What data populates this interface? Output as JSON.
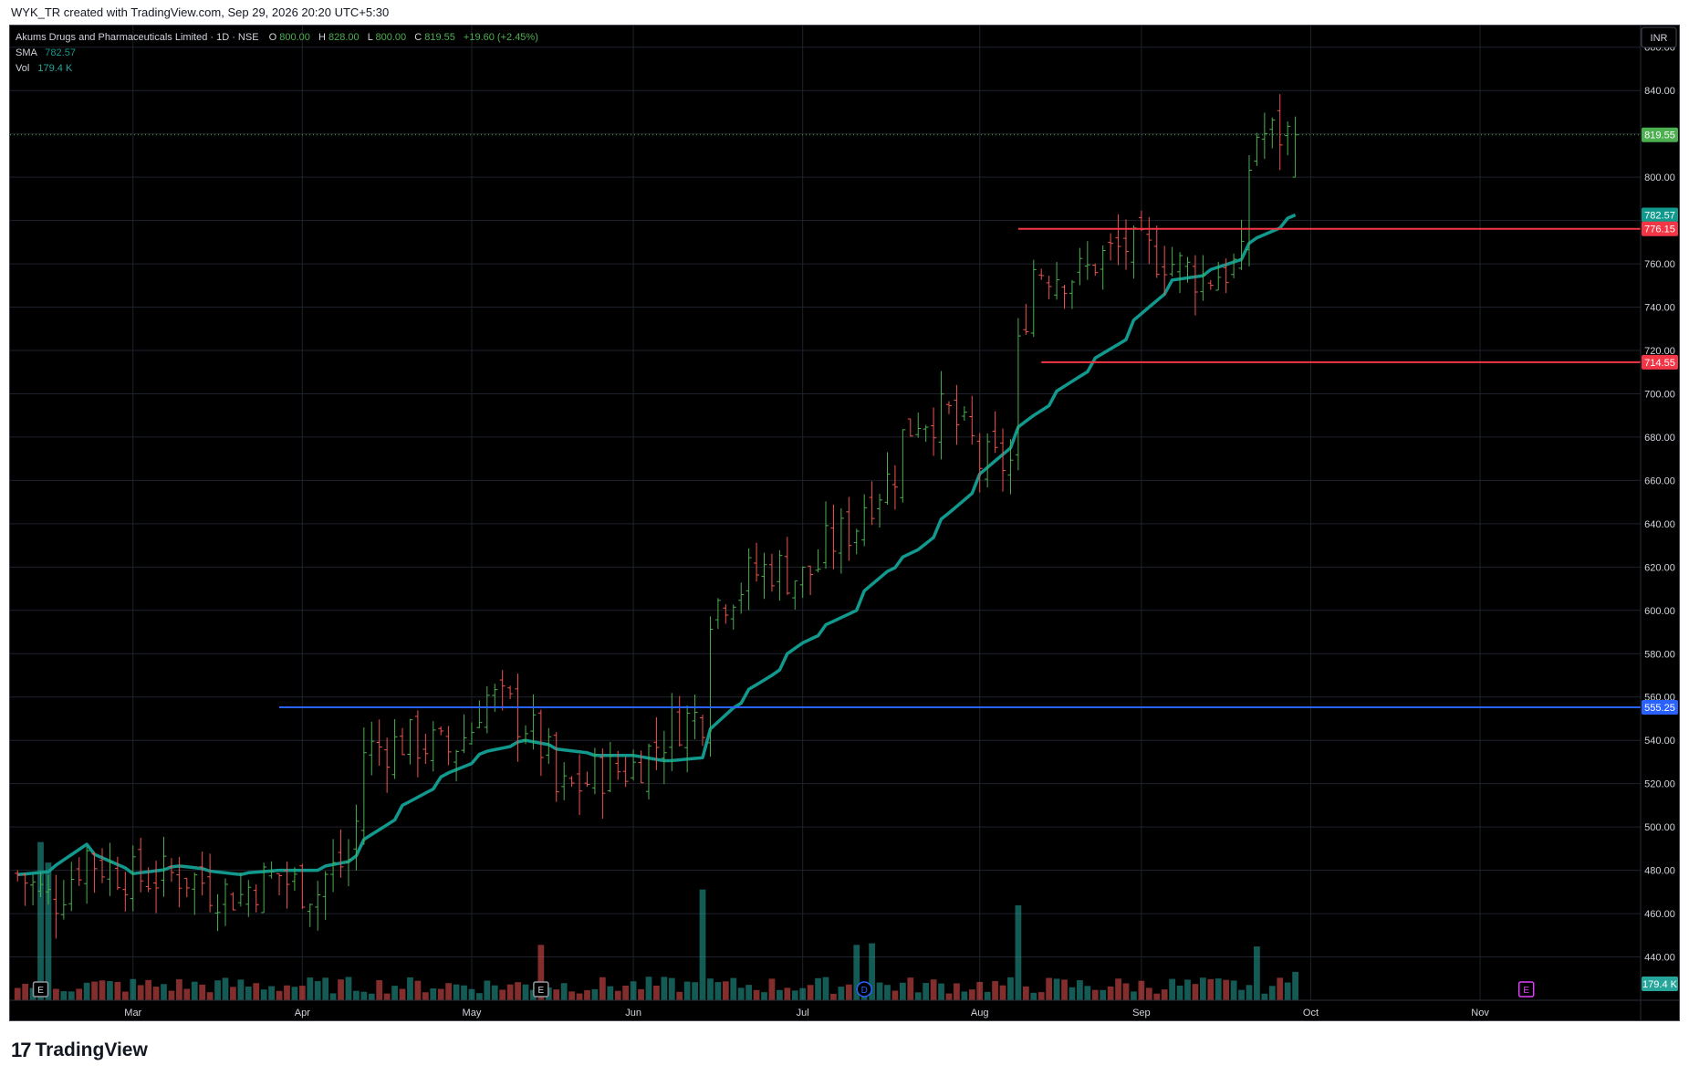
{
  "header": {
    "credit": "WYK_TR created with TradingView.com, Sep 29, 2026 20:20 UTC+5:30"
  },
  "legend": {
    "symbol": "Akums Drugs and Pharmaceuticals Limited · 1D · NSE",
    "o_label": "O",
    "o_value": "800.00",
    "h_label": "H",
    "h_value": "828.00",
    "l_label": "L",
    "l_value": "800.00",
    "c_label": "C",
    "c_value": "819.55",
    "change": "+19.60 (+2.45%)",
    "sma_label": "SMA",
    "sma_value": "782.57",
    "vol_label": "Vol",
    "vol_value": "179.4 K"
  },
  "currency": "INR",
  "footer": {
    "brand": "TradingView",
    "mark": "17"
  },
  "colors": {
    "up": "#26a69a",
    "down": "#ef5350",
    "up_bar": "#4caf50",
    "sma": "#11998e",
    "support": "#2962ff",
    "resistance": "#f23645",
    "last_price": "#4caf50",
    "background": "#000000",
    "grid": "#1e222d"
  },
  "chart_data": {
    "type": "ohlc",
    "y_axis": {
      "min": 420,
      "max": 870,
      "ticks": [
        440,
        460,
        480,
        500,
        520,
        540,
        560,
        580,
        600,
        620,
        640,
        660,
        680,
        700,
        720,
        740,
        760,
        780,
        800,
        820,
        840,
        860
      ],
      "tick_labels": [
        "440.00",
        "460.00",
        "480.00",
        "500.00",
        "520.00",
        "540.00",
        "560.00",
        "580.00",
        "600.00",
        "620.00",
        "640.00",
        "660.00",
        "680.00",
        "700.00",
        "720.00",
        "740.00",
        "760.00",
        "780.00",
        "800.00",
        "820.00",
        "840.00",
        "860.00"
      ]
    },
    "x_axis": {
      "month_labels": [
        "Mar",
        "Apr",
        "May",
        "Jun",
        "Jul",
        "Aug",
        "Sep",
        "Oct",
        "Nov"
      ],
      "month_dates": [
        "2026-03-01",
        "2026-04-01",
        "2026-05-01",
        "2026-06-01",
        "2026-07-01",
        "2026-08-01",
        "2026-09-01",
        "2026-10-01",
        "2026-11-01"
      ],
      "start": "2026-02-09",
      "end": "2026-11-30"
    },
    "grid": true,
    "price_labels": [
      {
        "value": 819.55,
        "text": "819.55",
        "color": "#4caf50"
      },
      {
        "value": 782.57,
        "text": "782.57",
        "color": "#11998e"
      },
      {
        "value": 776.15,
        "text": "776.15",
        "color": "#f23645"
      },
      {
        "value": 714.55,
        "text": "714.55",
        "color": "#f23645"
      },
      {
        "value": 555.25,
        "text": "555.25",
        "color": "#2962ff"
      },
      {
        "value": 179.4,
        "text": "179.4 K",
        "color": "#26a69a",
        "pane": "volume"
      }
    ],
    "horizontal_lines": [
      {
        "value": 555.25,
        "from": "2026-03-27",
        "color": "#2962ff"
      },
      {
        "value": 776.15,
        "from": "2026-08-09",
        "color": "#f23645"
      },
      {
        "value": 714.55,
        "from": "2026-08-13",
        "color": "#f23645"
      }
    ],
    "last_price": 819.55,
    "anchors": [
      [
        "2026-02-09",
        478,
        478
      ],
      [
        "2026-02-15",
        462,
        480
      ],
      [
        "2026-02-20",
        488,
        492
      ],
      [
        "2026-03-01",
        476,
        478
      ],
      [
        "2026-03-10",
        478,
        482
      ],
      [
        "2026-03-20",
        468,
        478
      ],
      [
        "2026-03-27",
        478,
        480
      ],
      [
        "2026-04-03",
        470,
        480
      ],
      [
        "2026-04-09",
        485,
        484
      ],
      [
        "2026-04-12",
        535,
        492
      ],
      [
        "2026-04-20",
        540,
        510
      ],
      [
        "2026-04-28",
        535,
        525
      ],
      [
        "2026-05-05",
        560,
        535
      ],
      [
        "2026-05-12",
        548,
        540
      ],
      [
        "2026-05-18",
        515,
        536
      ],
      [
        "2026-05-25",
        525,
        533
      ],
      [
        "2026-06-01",
        528,
        533
      ],
      [
        "2026-06-06",
        545,
        530
      ],
      [
        "2026-06-12",
        552,
        532
      ],
      [
        "2026-06-14",
        598,
        542
      ],
      [
        "2026-06-18",
        610,
        555
      ],
      [
        "2026-06-25",
        620,
        570
      ],
      [
        "2026-07-01",
        615,
        585
      ],
      [
        "2026-07-10",
        640,
        600
      ],
      [
        "2026-07-16",
        660,
        618
      ],
      [
        "2026-07-22",
        690,
        628
      ],
      [
        "2026-07-28",
        690,
        645
      ],
      [
        "2026-08-02",
        668,
        660
      ],
      [
        "2026-08-07",
        668,
        675
      ],
      [
        "2026-08-09",
        700,
        682
      ],
      [
        "2026-08-12",
        758,
        690
      ],
      [
        "2026-08-20",
        755,
        708
      ],
      [
        "2026-08-28",
        768,
        725
      ],
      [
        "2026-09-06",
        762,
        752
      ],
      [
        "2026-09-12",
        752,
        755
      ],
      [
        "2026-09-18",
        760,
        762
      ],
      [
        "2026-09-22",
        820,
        772
      ],
      [
        "2026-09-29",
        819.55,
        782.57
      ]
    ],
    "volume": {
      "unit": "K",
      "scale_max": 1500,
      "last": 179.4,
      "spikes": [
        [
          "2026-02-12",
          1000,
          "up"
        ],
        [
          "2026-02-13",
          870,
          "up"
        ],
        [
          "2026-05-14",
          350,
          "down"
        ],
        [
          "2026-06-12",
          700,
          "up"
        ],
        [
          "2026-06-13",
          1050,
          "up"
        ],
        [
          "2026-06-14",
          600,
          "up"
        ],
        [
          "2026-07-10",
          350,
          "up"
        ],
        [
          "2026-07-14",
          360,
          "up"
        ],
        [
          "2026-08-08",
          430,
          "up"
        ],
        [
          "2026-08-09",
          1150,
          "up"
        ],
        [
          "2026-08-10",
          600,
          "up"
        ],
        [
          "2026-09-05",
          260,
          "down"
        ],
        [
          "2026-09-22",
          340,
          "up"
        ]
      ]
    },
    "markers": [
      {
        "date": "2026-02-12",
        "letter": "E",
        "kind": "earnings-past"
      },
      {
        "date": "2026-05-14",
        "letter": "E",
        "kind": "earnings-past"
      },
      {
        "date": "2026-07-13",
        "letter": "D",
        "kind": "dividend"
      },
      {
        "date": "2026-11-10",
        "letter": "E",
        "kind": "earnings-future"
      }
    ]
  }
}
